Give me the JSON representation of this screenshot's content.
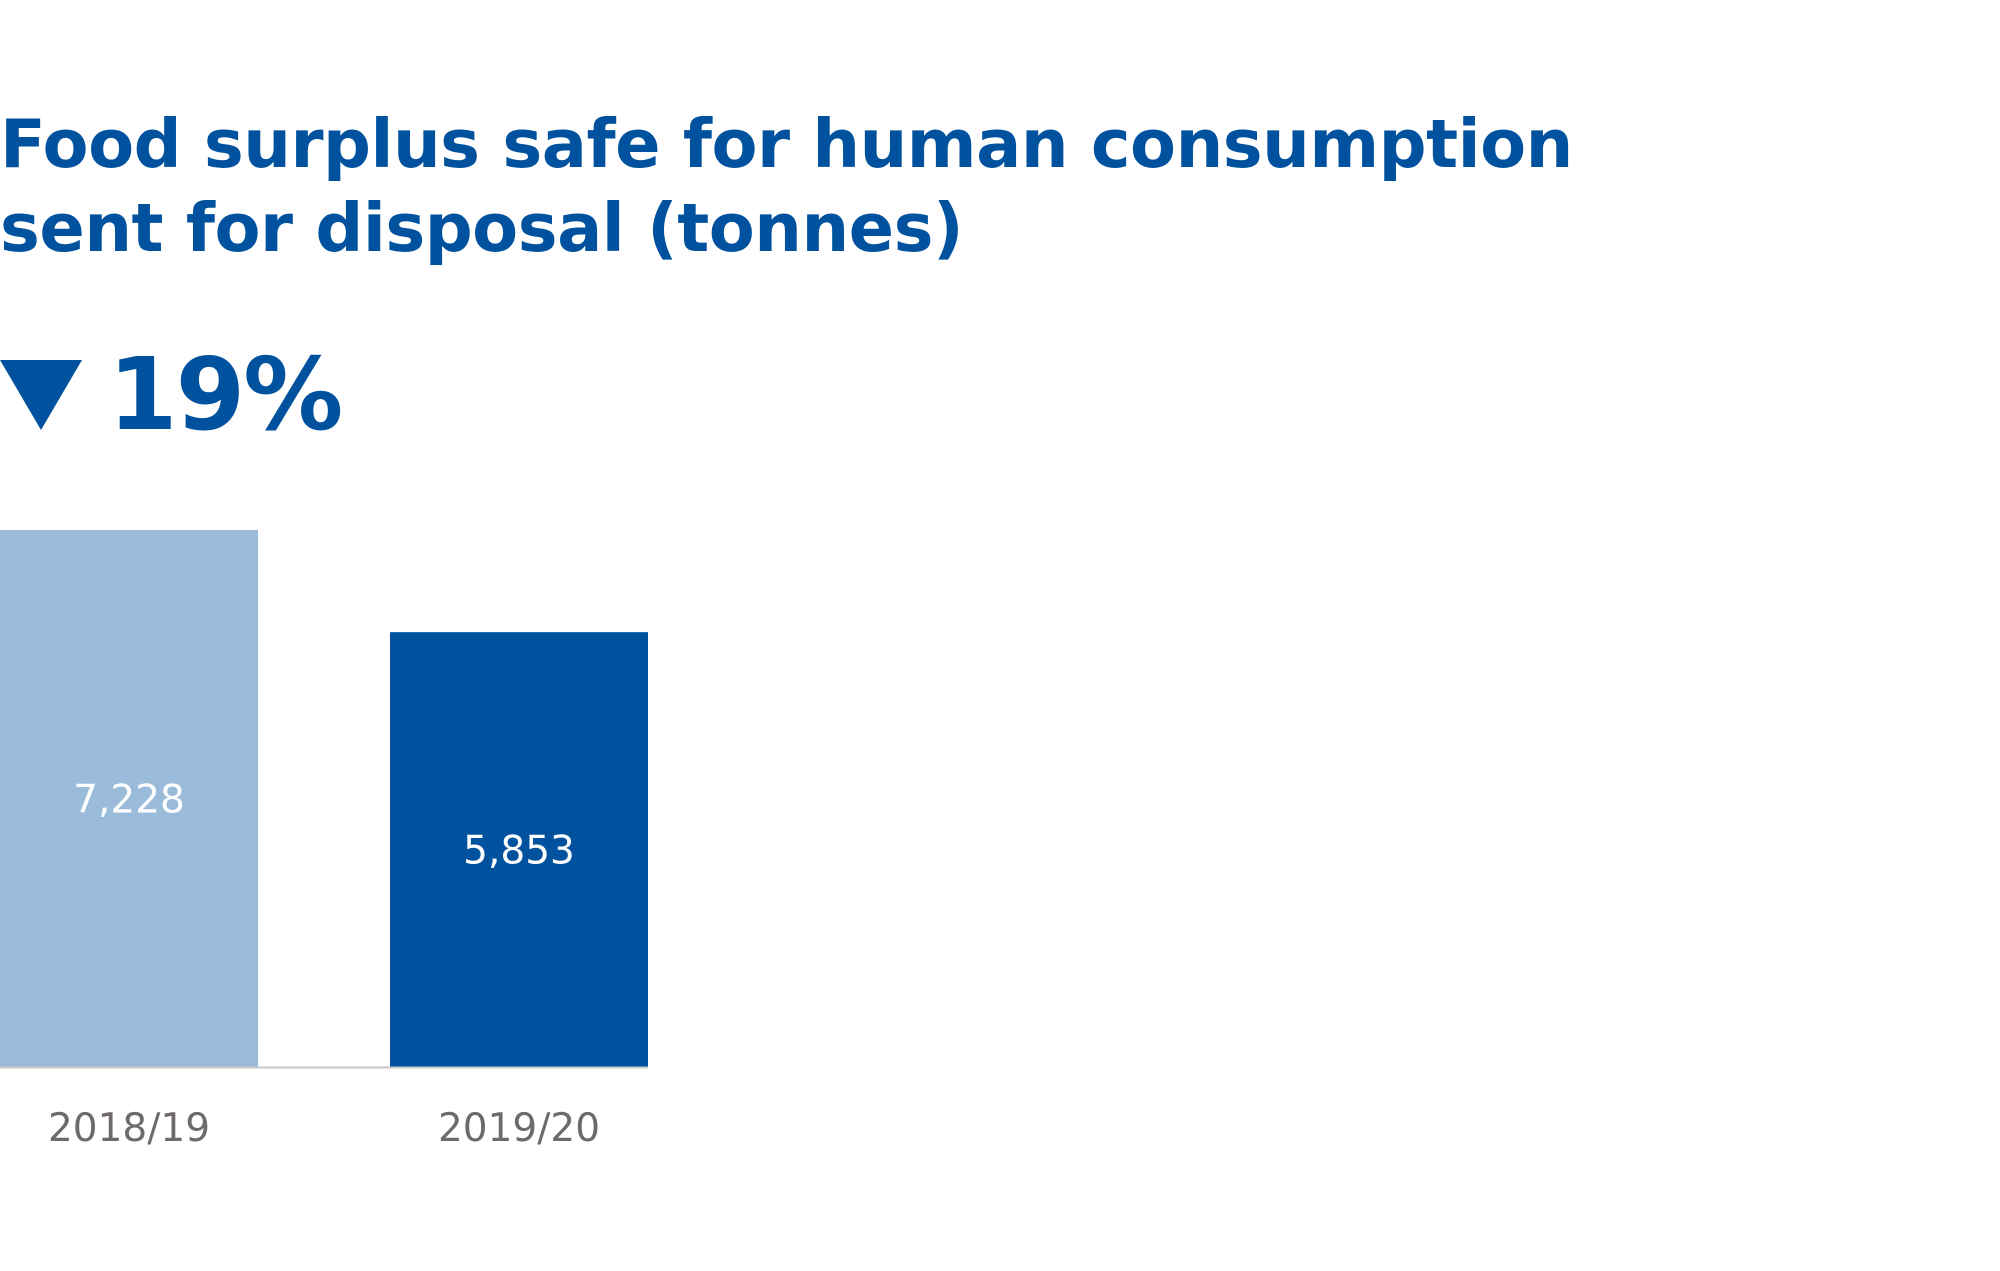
{
  "colors": {
    "title": "#00529F",
    "accent": "#00529F",
    "bar_previous": "#9ABBD9",
    "bar_current": "#00529F",
    "bar_label": "#FFFFFF",
    "tick_label": "#6F6A6A",
    "baseline": "#C8C8C8"
  },
  "change": {
    "direction_icon": "triangle-down-icon",
    "value": "19%"
  },
  "chart_data": {
    "type": "bar",
    "title": [
      "Food surplus safe for human consumption",
      "sent for disposal (tonnes)"
    ],
    "xlabel": "",
    "ylabel": "",
    "categories": [
      "2018/19",
      "2019/20"
    ],
    "values": [
      7228,
      5853
    ],
    "value_labels": [
      "7,228",
      "5,853"
    ],
    "ylim": [
      0,
      7228
    ],
    "grid": false,
    "legend": "none"
  }
}
